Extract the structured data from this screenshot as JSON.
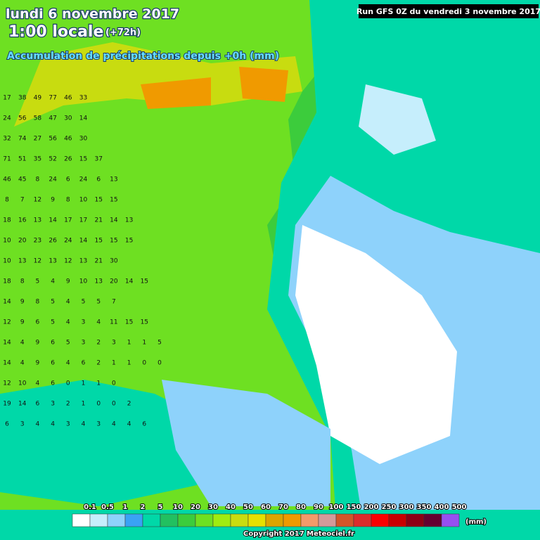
{
  "header": {
    "date": "lundi 6 novembre 2017",
    "time": "1:00 locale",
    "lead": "(+72h)",
    "title": "Accumulation de précipitations depuis +0h (mm)",
    "run": "Run GFS 0Z du vendredi 3 novembre 2017"
  },
  "grid": {
    "rows": [
      [
        17,
        38,
        49,
        77,
        46,
        33
      ],
      [
        24,
        56,
        58,
        47,
        30,
        14
      ],
      [
        32,
        74,
        27,
        56,
        46,
        30
      ],
      [
        71,
        51,
        35,
        52,
        26,
        15,
        37
      ],
      [
        46,
        45,
        8,
        24,
        6,
        24,
        6,
        13
      ],
      [
        8,
        7,
        12,
        9,
        8,
        10,
        15,
        15
      ],
      [
        18,
        16,
        13,
        14,
        17,
        17,
        21,
        14,
        13
      ],
      [
        10,
        20,
        23,
        26,
        24,
        14,
        15,
        15,
        15
      ],
      [
        10,
        13,
        12,
        13,
        12,
        13,
        21,
        30
      ],
      [
        18,
        8,
        5,
        4,
        9,
        10,
        13,
        20,
        14,
        15
      ],
      [
        14,
        9,
        8,
        5,
        4,
        5,
        5,
        7
      ],
      [
        12,
        9,
        6,
        5,
        4,
        3,
        4,
        11,
        15,
        15
      ],
      [
        14,
        4,
        9,
        6,
        5,
        3,
        2,
        3,
        1,
        1,
        5
      ],
      [
        14,
        4,
        9,
        6,
        4,
        6,
        2,
        1,
        1,
        0,
        0
      ],
      [
        12,
        10,
        4,
        6,
        0,
        1,
        1,
        0
      ],
      [
        19,
        14,
        6,
        3,
        2,
        1,
        0,
        0,
        2
      ],
      [
        6,
        3,
        4,
        4,
        3,
        4,
        3,
        4,
        4,
        6
      ]
    ]
  },
  "legend": {
    "levels": [
      0.1,
      0.5,
      1,
      2,
      5,
      10,
      20,
      30,
      40,
      50,
      60,
      70,
      80,
      90,
      100,
      150,
      200,
      250,
      300,
      350,
      400,
      500
    ],
    "colors": [
      "#ffffff",
      "#c6eefc",
      "#8ed2fb",
      "#3aa2f4",
      "#00d8a8",
      "#22c060",
      "#3ccc3c",
      "#6ee022",
      "#a0ec10",
      "#c8dc10",
      "#e6e000",
      "#dca400",
      "#f09a00",
      "#f29a6a",
      "#d49a9a",
      "#d2562a",
      "#dc2c2c",
      "#fa0000",
      "#c80000",
      "#8c0014",
      "#640030",
      "#9650f0"
    ],
    "unit": "(mm)"
  },
  "footer": {
    "copyright": "Copyright 2017 Meteociel.fr"
  }
}
